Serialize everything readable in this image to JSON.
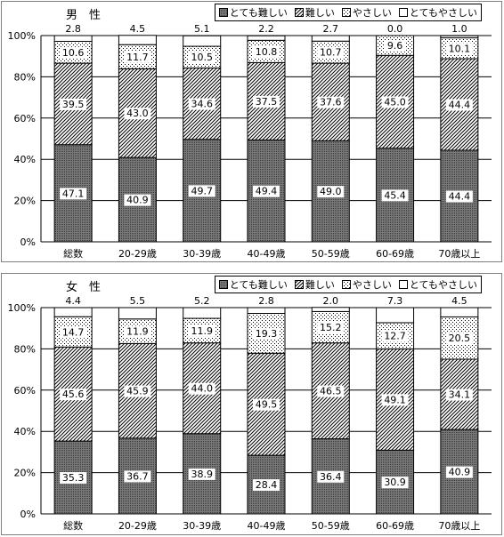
{
  "chart_data": [
    {
      "type": "bar",
      "stacked": true,
      "title": "男　性",
      "categories": [
        "総数",
        "20-29歳",
        "30-39歳",
        "40-49歳",
        "50-59歳",
        "60-69歳",
        "70歳以上"
      ],
      "series": [
        {
          "name": "とても難しい",
          "values": [
            47.1,
            40.9,
            49.7,
            49.4,
            49.0,
            45.4,
            44.4
          ]
        },
        {
          "name": "難しい",
          "values": [
            39.5,
            43.0,
            34.6,
            37.5,
            37.6,
            45.0,
            44.4
          ]
        },
        {
          "name": "やさしい",
          "values": [
            10.6,
            11.7,
            10.5,
            10.8,
            10.7,
            9.6,
            10.1
          ]
        },
        {
          "name": "とてもやさしい",
          "values": [
            2.8,
            4.5,
            5.1,
            2.2,
            2.7,
            0.0,
            1.0
          ]
        }
      ],
      "yticks": [
        "0%",
        "20%",
        "40%",
        "60%",
        "80%",
        "100%"
      ],
      "ylim": [
        0,
        100
      ],
      "grid": true,
      "legend": "top-right"
    },
    {
      "type": "bar",
      "stacked": true,
      "title": "女　性",
      "categories": [
        "総数",
        "20-29歳",
        "30-39歳",
        "40-49歳",
        "50-59歳",
        "60-69歳",
        "70歳以上"
      ],
      "series": [
        {
          "name": "とても難しい",
          "values": [
            35.3,
            36.7,
            38.9,
            28.4,
            36.4,
            30.9,
            40.9
          ]
        },
        {
          "name": "難しい",
          "values": [
            45.6,
            45.9,
            44.0,
            49.5,
            46.5,
            49.1,
            34.1
          ]
        },
        {
          "name": "やさしい",
          "values": [
            14.7,
            11.9,
            11.9,
            19.3,
            15.2,
            12.7,
            20.5
          ]
        },
        {
          "name": "とてもやさしい",
          "values": [
            4.4,
            5.5,
            5.2,
            2.8,
            2.0,
            7.3,
            4.5
          ]
        }
      ],
      "yticks": [
        "0%",
        "20%",
        "40%",
        "60%",
        "80%",
        "100%"
      ],
      "ylim": [
        0,
        100
      ],
      "grid": true,
      "legend": "top-right"
    }
  ]
}
